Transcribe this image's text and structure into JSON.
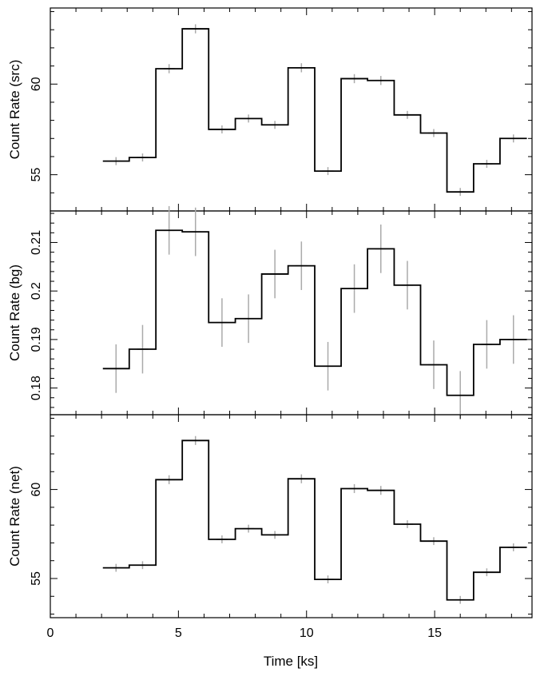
{
  "chart_data": [
    {
      "type": "line",
      "ylabel": "Count Rate (src)",
      "xlim": [
        0,
        18.8
      ],
      "ylim": [
        53.0,
        64.2
      ],
      "yticks": [
        55,
        60
      ],
      "bins": [
        {
          "x0": 2.05,
          "x1": 3.08,
          "y": 55.75,
          "err": 0.22
        },
        {
          "x0": 3.08,
          "x1": 4.12,
          "y": 55.95,
          "err": 0.22
        },
        {
          "x0": 4.12,
          "x1": 5.15,
          "y": 60.85,
          "err": 0.25
        },
        {
          "x0": 5.15,
          "x1": 6.18,
          "y": 63.05,
          "err": 0.25
        },
        {
          "x0": 6.18,
          "x1": 7.22,
          "y": 57.5,
          "err": 0.22
        },
        {
          "x0": 7.22,
          "x1": 8.25,
          "y": 58.1,
          "err": 0.22
        },
        {
          "x0": 8.25,
          "x1": 9.28,
          "y": 57.75,
          "err": 0.22
        },
        {
          "x0": 9.28,
          "x1": 10.32,
          "y": 60.9,
          "err": 0.25
        },
        {
          "x0": 10.32,
          "x1": 11.35,
          "y": 55.2,
          "err": 0.22
        },
        {
          "x0": 11.35,
          "x1": 12.38,
          "y": 60.3,
          "err": 0.25
        },
        {
          "x0": 12.38,
          "x1": 13.42,
          "y": 60.2,
          "err": 0.25
        },
        {
          "x0": 13.42,
          "x1": 14.45,
          "y": 58.3,
          "err": 0.22
        },
        {
          "x0": 14.45,
          "x1": 15.48,
          "y": 57.3,
          "err": 0.22
        },
        {
          "x0": 15.48,
          "x1": 16.52,
          "y": 54.05,
          "err": 0.22
        },
        {
          "x0": 16.52,
          "x1": 17.55,
          "y": 55.6,
          "err": 0.22
        },
        {
          "x0": 17.55,
          "x1": 18.6,
          "y": 57.0,
          "err": 0.22
        }
      ]
    },
    {
      "type": "line",
      "ylabel": "Count Rate (bg)",
      "xlim": [
        0,
        18.8
      ],
      "ylim": [
        0.1745,
        0.2165
      ],
      "yticks": [
        0.18,
        0.19,
        0.2,
        0.21
      ],
      "tick_labels": [
        "0.18",
        "0.19",
        "0.2",
        "0.21"
      ],
      "bins": [
        {
          "x0": 2.05,
          "x1": 3.08,
          "y": 0.184,
          "err": 0.005
        },
        {
          "x0": 3.08,
          "x1": 4.12,
          "y": 0.188,
          "err": 0.005
        },
        {
          "x0": 4.12,
          "x1": 5.15,
          "y": 0.2125,
          "err": 0.005
        },
        {
          "x0": 5.15,
          "x1": 6.18,
          "y": 0.2122,
          "err": 0.005
        },
        {
          "x0": 6.18,
          "x1": 7.22,
          "y": 0.1935,
          "err": 0.005
        },
        {
          "x0": 7.22,
          "x1": 8.25,
          "y": 0.1943,
          "err": 0.005
        },
        {
          "x0": 8.25,
          "x1": 9.28,
          "y": 0.2035,
          "err": 0.005
        },
        {
          "x0": 9.28,
          "x1": 10.32,
          "y": 0.2052,
          "err": 0.005
        },
        {
          "x0": 10.32,
          "x1": 11.35,
          "y": 0.1845,
          "err": 0.005
        },
        {
          "x0": 11.35,
          "x1": 12.38,
          "y": 0.2005,
          "err": 0.005
        },
        {
          "x0": 12.38,
          "x1": 13.42,
          "y": 0.2087,
          "err": 0.005
        },
        {
          "x0": 13.42,
          "x1": 14.45,
          "y": 0.2012,
          "err": 0.005
        },
        {
          "x0": 14.45,
          "x1": 15.48,
          "y": 0.1848,
          "err": 0.005
        },
        {
          "x0": 15.48,
          "x1": 16.52,
          "y": 0.1785,
          "err": 0.005
        },
        {
          "x0": 16.52,
          "x1": 17.55,
          "y": 0.189,
          "err": 0.005
        },
        {
          "x0": 17.55,
          "x1": 18.6,
          "y": 0.19,
          "err": 0.005
        }
      ]
    },
    {
      "type": "line",
      "ylabel": "Count Rate (net)",
      "xlim": [
        0,
        18.8
      ],
      "ylim": [
        52.8,
        64.2
      ],
      "yticks": [
        55,
        60
      ],
      "xlabel": "Time [ks]",
      "xticks": [
        0,
        5,
        10,
        15
      ],
      "bins": [
        {
          "x0": 2.05,
          "x1": 3.08,
          "y": 55.6,
          "err": 0.22
        },
        {
          "x0": 3.08,
          "x1": 4.12,
          "y": 55.75,
          "err": 0.22
        },
        {
          "x0": 4.12,
          "x1": 5.15,
          "y": 60.55,
          "err": 0.25
        },
        {
          "x0": 5.15,
          "x1": 6.18,
          "y": 62.75,
          "err": 0.25
        },
        {
          "x0": 6.18,
          "x1": 7.22,
          "y": 57.2,
          "err": 0.22
        },
        {
          "x0": 7.22,
          "x1": 8.25,
          "y": 57.8,
          "err": 0.22
        },
        {
          "x0": 8.25,
          "x1": 9.28,
          "y": 57.45,
          "err": 0.22
        },
        {
          "x0": 9.28,
          "x1": 10.32,
          "y": 60.6,
          "err": 0.25
        },
        {
          "x0": 10.32,
          "x1": 11.35,
          "y": 54.95,
          "err": 0.22
        },
        {
          "x0": 11.35,
          "x1": 12.38,
          "y": 60.05,
          "err": 0.25
        },
        {
          "x0": 12.38,
          "x1": 13.42,
          "y": 59.95,
          "err": 0.25
        },
        {
          "x0": 13.42,
          "x1": 14.45,
          "y": 58.05,
          "err": 0.22
        },
        {
          "x0": 14.45,
          "x1": 15.48,
          "y": 57.1,
          "err": 0.22
        },
        {
          "x0": 15.48,
          "x1": 16.52,
          "y": 53.8,
          "err": 0.22
        },
        {
          "x0": 16.52,
          "x1": 17.55,
          "y": 55.35,
          "err": 0.22
        },
        {
          "x0": 17.55,
          "x1": 18.6,
          "y": 56.75,
          "err": 0.22
        }
      ]
    }
  ],
  "colors": {
    "line": "#000000",
    "errorbar": "#aaaaaa",
    "frame": "#000000"
  }
}
